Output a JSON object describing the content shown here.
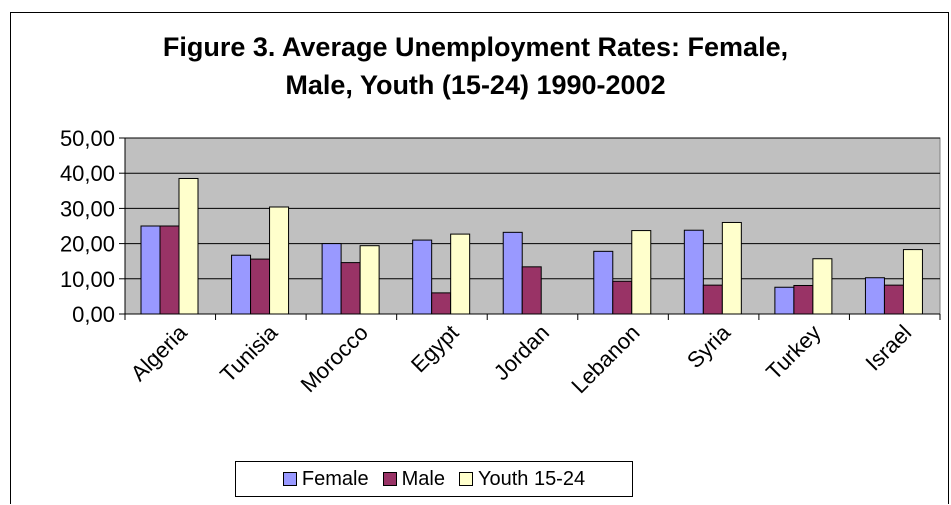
{
  "chart_data": {
    "type": "bar",
    "title_line1": "Figure 3. Average Unemployment Rates: Female,",
    "title_line2": "Male, Youth (15-24) 1990-2002",
    "categories": [
      "Algeria",
      "Tunisia",
      "Morocco",
      "Egypt",
      "Jordan",
      "Lebanon",
      "Syria",
      "Turkey",
      "Israel"
    ],
    "series": [
      {
        "name": "Female",
        "color": "#9999ff",
        "values": [
          25.0,
          16.7,
          20.0,
          21.0,
          23.2,
          17.8,
          23.8,
          7.6,
          10.3
        ]
      },
      {
        "name": "Male",
        "color": "#993366",
        "values": [
          25.0,
          15.6,
          14.6,
          6.0,
          13.4,
          9.3,
          8.2,
          8.1,
          8.2
        ]
      },
      {
        "name": "Youth 15-24",
        "color": "#ffffcc",
        "values": [
          38.5,
          30.4,
          19.4,
          22.7,
          null,
          23.7,
          26.0,
          15.7,
          18.3
        ]
      }
    ],
    "ylim": [
      0,
      50
    ],
    "yticks": [
      "0,00",
      "10,00",
      "20,00",
      "30,00",
      "40,00",
      "50,00"
    ],
    "grid": true,
    "legend_position": "bottom"
  }
}
